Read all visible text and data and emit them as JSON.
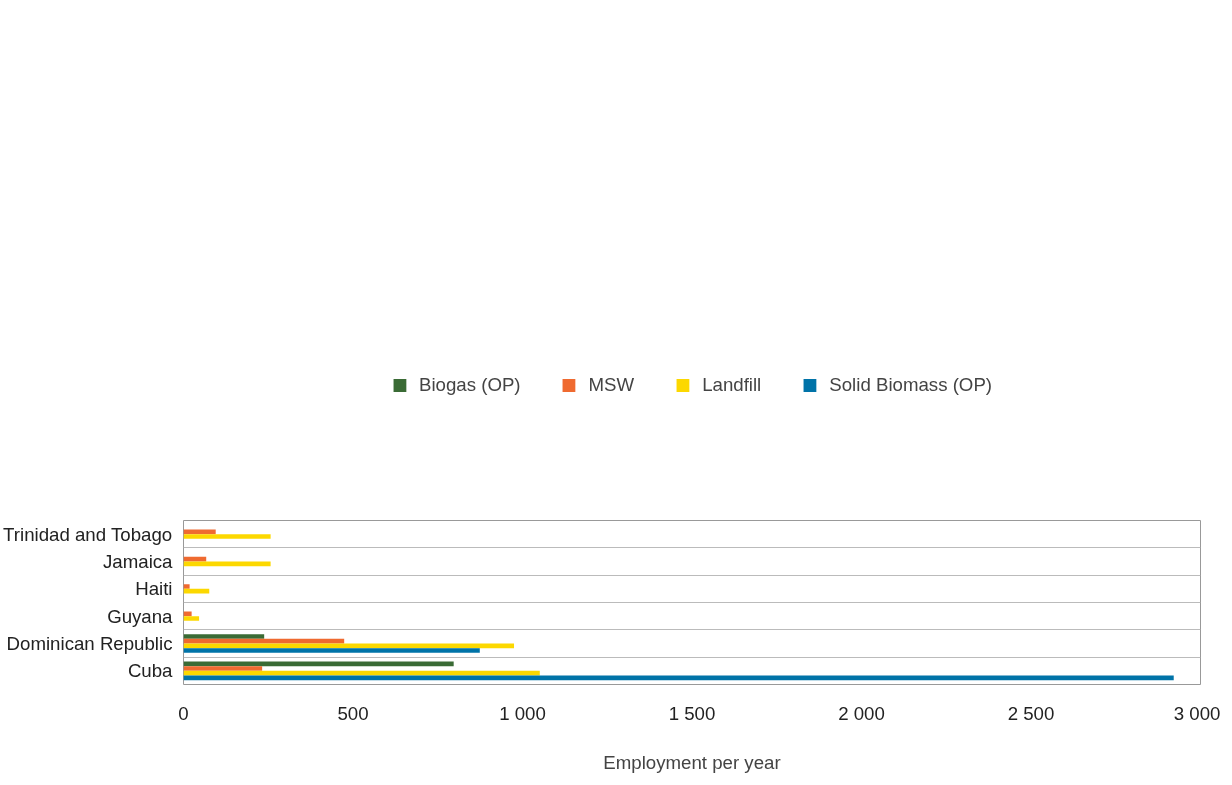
{
  "chart_data": {
    "type": "bar",
    "orientation": "horizontal",
    "xlabel": "Employment per year",
    "categories": [
      "Trinidad and Tobago",
      "Jamaica",
      "Haiti",
      "Guyana",
      "Dominican Republic",
      "Cuba"
    ],
    "series": [
      {
        "name": "Biogas (OP)",
        "color": "#3a6b35",
        "values": [
          null,
          null,
          null,
          null,
          238,
          797
        ]
      },
      {
        "name": "MSW",
        "color": "#ef6a30",
        "values": [
          95,
          67,
          18,
          24,
          474,
          232
        ]
      },
      {
        "name": "Landfill",
        "color": "#fcd800",
        "values": [
          257,
          257,
          76,
          46,
          975,
          1051
        ]
      },
      {
        "name": "Solid Biomass (OP)",
        "color": "#0073a8",
        "values": [
          null,
          null,
          null,
          null,
          874,
          2921
        ]
      }
    ],
    "xlim": [
      0,
      3000
    ],
    "xticks": [
      0,
      500,
      {
        "value": 1000,
        "label": "1 000"
      },
      {
        "value": 1500,
        "label": "1 500"
      },
      {
        "value": 2000,
        "label": "2 000"
      },
      {
        "value": 2500,
        "label": "2 500"
      },
      {
        "value": 3000,
        "label": "3 000"
      }
    ],
    "grid": "y",
    "legend": "top"
  }
}
